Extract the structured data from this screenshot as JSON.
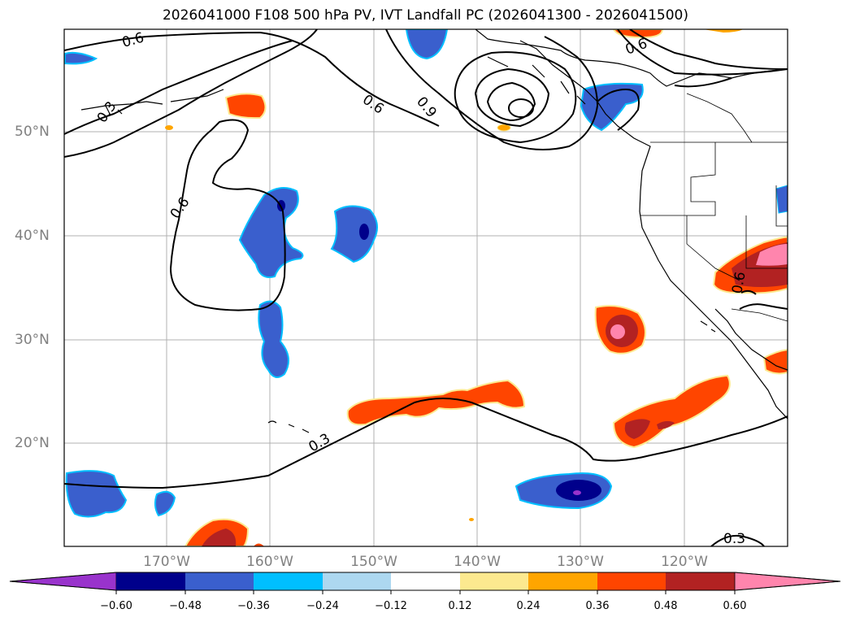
{
  "title": "2026041000 F108 500 hPa PV, IVT Landfall PC (2026041300 - 2026041500)",
  "lat_labels": [
    "50°N",
    "40°N",
    "30°N",
    "20°N"
  ],
  "lon_labels": [
    "170°W",
    "160°W",
    "150°W",
    "140°W",
    "130°W",
    "120°W"
  ],
  "contour_labels": [
    "0.6",
    "0.3",
    "0.6",
    "0.9",
    "0.6",
    "0.6",
    "0.3",
    "0.3",
    "0.6"
  ],
  "colorbar": {
    "ticks": [
      "−0.60",
      "−0.48",
      "−0.36",
      "−0.24",
      "−0.12",
      "0.12",
      "0.24",
      "0.36",
      "0.48",
      "0.60"
    ],
    "colors": [
      "#9933cc",
      "#00008b",
      "#3a5fcd",
      "#00bfff",
      "#add8f0",
      "#ffffff",
      "#fce98f",
      "#ffa500",
      "#ff4500",
      "#b22222",
      "#ff85ad"
    ]
  },
  "colors": {
    "coast": "#000000",
    "contour": "#000000",
    "grid": "#b0b0b0",
    "axis_label": "#808080"
  }
}
